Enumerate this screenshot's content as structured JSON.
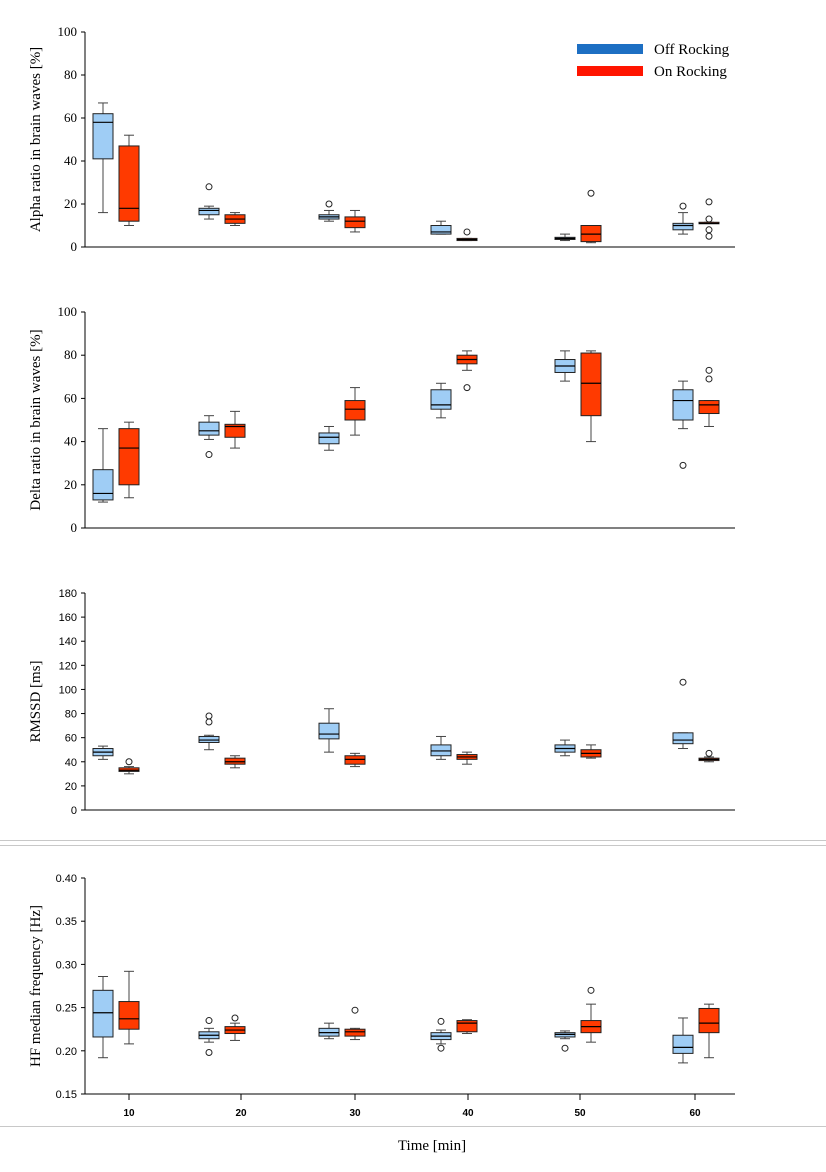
{
  "figure": {
    "shared_xlabel": "Time [min]"
  },
  "colors": {
    "off": "#9fcdf5",
    "on": "#ff3a00",
    "legend_off": "#1d6fc3",
    "legend_on": "#ff1500",
    "axis": "#000000",
    "whisker": "#444444"
  },
  "legend": [
    {
      "label": "Off Rocking",
      "color": "#1d6fc3"
    },
    {
      "label": "On Rocking",
      "color": "#ff1500"
    }
  ],
  "chart_data": [
    {
      "type": "box",
      "ylabel": "Alpha ratio in brain waves [%]",
      "ylim": [
        0,
        100
      ],
      "yticks": [
        0,
        20,
        40,
        60,
        80,
        100
      ],
      "tick_font": "serif",
      "groups": [
        10,
        20,
        30,
        40,
        50,
        60
      ],
      "series": [
        {
          "name": "Off Rocking",
          "boxes": [
            {
              "whislo": 16,
              "q1": 41,
              "med": 58,
              "q3": 62,
              "whishi": 67,
              "fliers": []
            },
            {
              "whislo": 13,
              "q1": 15,
              "med": 17,
              "q3": 18,
              "whishi": 19,
              "fliers": [
                28
              ]
            },
            {
              "whislo": 12,
              "q1": 13,
              "med": 14,
              "q3": 15,
              "whishi": 17,
              "fliers": [
                20
              ]
            },
            {
              "whislo": 6,
              "q1": 6,
              "med": 7,
              "q3": 10,
              "whishi": 12,
              "fliers": []
            },
            {
              "whislo": 3,
              "q1": 3.5,
              "med": 4,
              "q3": 4.5,
              "whishi": 6,
              "fliers": []
            },
            {
              "whislo": 6,
              "q1": 8,
              "med": 10,
              "q3": 11,
              "whishi": 16,
              "fliers": [
                19
              ]
            }
          ]
        },
        {
          "name": "On Rocking",
          "boxes": [
            {
              "whislo": 10,
              "q1": 12,
              "med": 18,
              "q3": 47,
              "whishi": 52,
              "fliers": []
            },
            {
              "whislo": 10,
              "q1": 11,
              "med": 13,
              "q3": 15,
              "whishi": 16,
              "fliers": []
            },
            {
              "whislo": 7,
              "q1": 9,
              "med": 12,
              "q3": 14,
              "whishi": 17,
              "fliers": []
            },
            {
              "whislo": 3,
              "q1": 3,
              "med": 3.5,
              "q3": 4,
              "whishi": 4,
              "fliers": [
                7
              ]
            },
            {
              "whislo": 2,
              "q1": 2.5,
              "med": 6,
              "q3": 10,
              "whishi": 10,
              "fliers": [
                25
              ]
            },
            {
              "whislo": 11,
              "q1": 11,
              "med": 11,
              "q3": 11.5,
              "whishi": 11.5,
              "fliers": [
                5,
                8,
                13,
                21
              ]
            }
          ]
        }
      ]
    },
    {
      "type": "box",
      "ylabel": "Delta ratio in brain waves [%]",
      "ylim": [
        0,
        100
      ],
      "yticks": [
        0,
        20,
        40,
        60,
        80,
        100
      ],
      "tick_font": "serif",
      "groups": [
        10,
        20,
        30,
        40,
        50,
        60
      ],
      "series": [
        {
          "name": "Off Rocking",
          "boxes": [
            {
              "whislo": 12,
              "q1": 13,
              "med": 16,
              "q3": 27,
              "whishi": 46,
              "fliers": []
            },
            {
              "whislo": 41,
              "q1": 43,
              "med": 45,
              "q3": 49,
              "whishi": 52,
              "fliers": [
                34
              ]
            },
            {
              "whislo": 36,
              "q1": 39,
              "med": 42,
              "q3": 44,
              "whishi": 47,
              "fliers": []
            },
            {
              "whislo": 51,
              "q1": 55,
              "med": 57,
              "q3": 64,
              "whishi": 67,
              "fliers": []
            },
            {
              "whislo": 68,
              "q1": 72,
              "med": 75,
              "q3": 78,
              "whishi": 82,
              "fliers": []
            },
            {
              "whislo": 46,
              "q1": 50,
              "med": 59,
              "q3": 64,
              "whishi": 68,
              "fliers": [
                29
              ]
            }
          ]
        },
        {
          "name": "On Rocking",
          "boxes": [
            {
              "whislo": 14,
              "q1": 20,
              "med": 37,
              "q3": 46,
              "whishi": 49,
              "fliers": []
            },
            {
              "whislo": 37,
              "q1": 42,
              "med": 47,
              "q3": 48,
              "whishi": 54,
              "fliers": []
            },
            {
              "whislo": 43,
              "q1": 50,
              "med": 55,
              "q3": 59,
              "whishi": 65,
              "fliers": []
            },
            {
              "whislo": 73,
              "q1": 76,
              "med": 78,
              "q3": 80,
              "whishi": 82,
              "fliers": [
                65
              ]
            },
            {
              "whislo": 40,
              "q1": 52,
              "med": 67,
              "q3": 81,
              "whishi": 82,
              "fliers": []
            },
            {
              "whislo": 47,
              "q1": 53,
              "med": 57,
              "q3": 59,
              "whishi": 59,
              "fliers": [
                69,
                73
              ]
            }
          ]
        }
      ]
    },
    {
      "type": "box",
      "ylabel": "RMSSD [ms]",
      "ylim": [
        0,
        180
      ],
      "yticks": [
        0,
        20,
        40,
        60,
        80,
        100,
        120,
        140,
        160,
        180
      ],
      "tick_font": "sans",
      "groups": [
        10,
        20,
        30,
        40,
        50,
        60
      ],
      "series": [
        {
          "name": "Off Rocking",
          "boxes": [
            {
              "whislo": 42,
              "q1": 45,
              "med": 48,
              "q3": 51,
              "whishi": 53,
              "fliers": []
            },
            {
              "whislo": 50,
              "q1": 56,
              "med": 58,
              "q3": 61,
              "whishi": 62,
              "fliers": [
                73,
                78
              ]
            },
            {
              "whislo": 48,
              "q1": 59,
              "med": 63,
              "q3": 72,
              "whishi": 84,
              "fliers": []
            },
            {
              "whislo": 42,
              "q1": 45,
              "med": 49,
              "q3": 54,
              "whishi": 61,
              "fliers": []
            },
            {
              "whislo": 45,
              "q1": 48,
              "med": 51,
              "q3": 54,
              "whishi": 58,
              "fliers": []
            },
            {
              "whislo": 51,
              "q1": 55,
              "med": 58,
              "q3": 64,
              "whishi": 64,
              "fliers": [
                106
              ]
            }
          ]
        },
        {
          "name": "On Rocking",
          "boxes": [
            {
              "whislo": 30,
              "q1": 32,
              "med": 33,
              "q3": 35,
              "whishi": 36,
              "fliers": [
                40
              ]
            },
            {
              "whislo": 35,
              "q1": 38,
              "med": 40,
              "q3": 43,
              "whishi": 45,
              "fliers": []
            },
            {
              "whislo": 36,
              "q1": 38,
              "med": 42,
              "q3": 45,
              "whishi": 47,
              "fliers": []
            },
            {
              "whislo": 38,
              "q1": 42,
              "med": 44,
              "q3": 46,
              "whishi": 48,
              "fliers": []
            },
            {
              "whislo": 43,
              "q1": 44,
              "med": 47,
              "q3": 50,
              "whishi": 54,
              "fliers": []
            },
            {
              "whislo": 40,
              "q1": 41,
              "med": 42,
              "q3": 43,
              "whishi": 44,
              "fliers": [
                47
              ]
            }
          ]
        }
      ]
    },
    {
      "type": "box",
      "ylabel": "HF median frequency [Hz]",
      "ylim": [
        0.15,
        0.4
      ],
      "yticks": [
        "0.15",
        "0.20",
        "0.25",
        "0.30",
        "0.35",
        "0.40"
      ],
      "tick_font": "sans",
      "xticks": [
        "10",
        "20",
        "30",
        "40",
        "50",
        "60"
      ],
      "groups": [
        10,
        20,
        30,
        40,
        50,
        60
      ],
      "series": [
        {
          "name": "Off Rocking",
          "boxes": [
            {
              "whislo": 0.192,
              "q1": 0.216,
              "med": 0.244,
              "q3": 0.27,
              "whishi": 0.286,
              "fliers": []
            },
            {
              "whislo": 0.21,
              "q1": 0.214,
              "med": 0.218,
              "q3": 0.222,
              "whishi": 0.226,
              "fliers": [
                0.198,
                0.235
              ]
            },
            {
              "whislo": 0.214,
              "q1": 0.217,
              "med": 0.221,
              "q3": 0.226,
              "whishi": 0.232,
              "fliers": []
            },
            {
              "whislo": 0.208,
              "q1": 0.213,
              "med": 0.217,
              "q3": 0.221,
              "whishi": 0.224,
              "fliers": [
                0.203,
                0.234
              ]
            },
            {
              "whislo": 0.214,
              "q1": 0.216,
              "med": 0.219,
              "q3": 0.221,
              "whishi": 0.223,
              "fliers": [
                0.203
              ]
            },
            {
              "whislo": 0.186,
              "q1": 0.197,
              "med": 0.204,
              "q3": 0.218,
              "whishi": 0.238,
              "fliers": []
            }
          ]
        },
        {
          "name": "On Rocking",
          "boxes": [
            {
              "whislo": 0.208,
              "q1": 0.225,
              "med": 0.237,
              "q3": 0.257,
              "whishi": 0.292,
              "fliers": []
            },
            {
              "whislo": 0.212,
              "q1": 0.22,
              "med": 0.224,
              "q3": 0.228,
              "whishi": 0.232,
              "fliers": [
                0.238
              ]
            },
            {
              "whislo": 0.213,
              "q1": 0.217,
              "med": 0.222,
              "q3": 0.225,
              "whishi": 0.226,
              "fliers": [
                0.247
              ]
            },
            {
              "whislo": 0.22,
              "q1": 0.222,
              "med": 0.232,
              "q3": 0.235,
              "whishi": 0.236,
              "fliers": []
            },
            {
              "whislo": 0.21,
              "q1": 0.221,
              "med": 0.228,
              "q3": 0.235,
              "whishi": 0.254,
              "fliers": [
                0.27
              ]
            },
            {
              "whislo": 0.192,
              "q1": 0.221,
              "med": 0.232,
              "q3": 0.249,
              "whishi": 0.254,
              "fliers": []
            }
          ]
        }
      ]
    }
  ]
}
